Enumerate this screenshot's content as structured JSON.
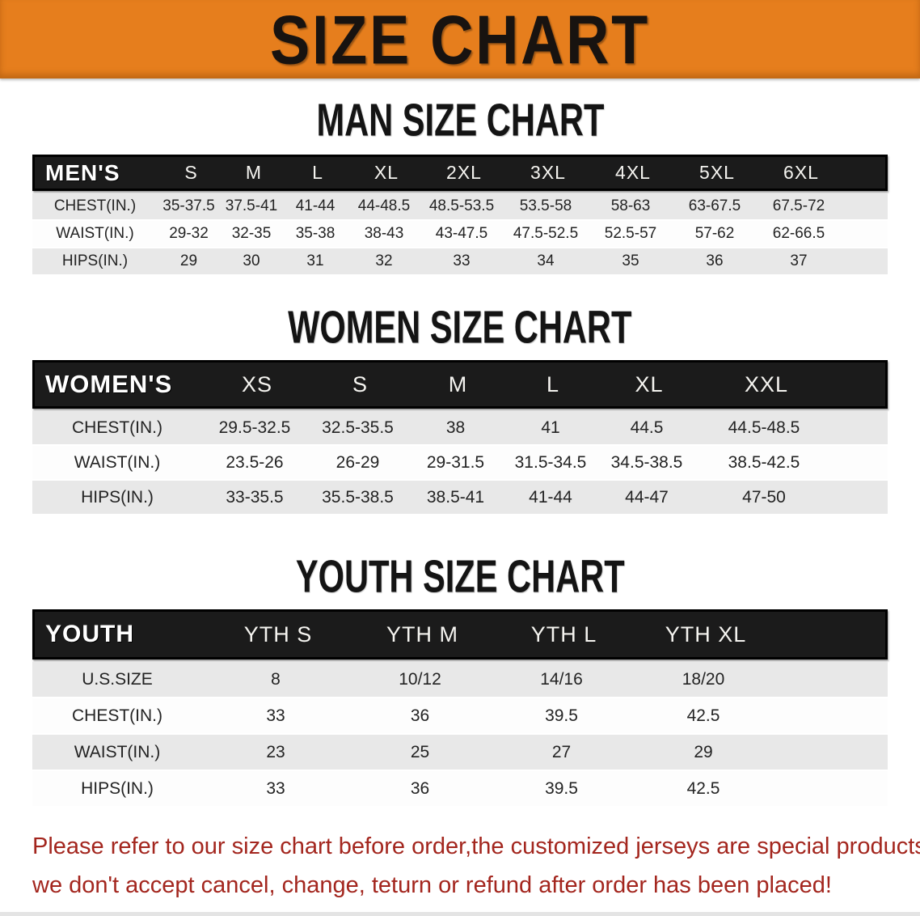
{
  "banner": {
    "title": "SIZE CHART"
  },
  "sections": {
    "men": {
      "heading": "MAN SIZE CHART",
      "header_label": "MEN'S",
      "columns": [
        "S",
        "M",
        "L",
        "XL",
        "2XL",
        "3XL",
        "4XL",
        "5XL",
        "6XL"
      ],
      "rows": [
        {
          "label": "CHEST(IN.)",
          "values": [
            "35-37.5",
            "37.5-41",
            "41-44",
            "44-48.5",
            "48.5-53.5",
            "53.5-58",
            "58-63",
            "63-67.5",
            "67.5-72"
          ]
        },
        {
          "label": "WAIST(IN.)",
          "values": [
            "29-32",
            "32-35",
            "35-38",
            "38-43",
            "43-47.5",
            "47.5-52.5",
            "52.5-57",
            "57-62",
            "62-66.5"
          ]
        },
        {
          "label": "HIPS(IN.)",
          "values": [
            "29",
            "30",
            "31",
            "32",
            "33",
            "34",
            "35",
            "36",
            "37"
          ]
        }
      ]
    },
    "women": {
      "heading": "WOMEN SIZE CHART",
      "header_label": "WOMEN'S",
      "columns": [
        "XS",
        "S",
        "M",
        "L",
        "XL",
        "XXL"
      ],
      "rows": [
        {
          "label": "CHEST(IN.)",
          "values": [
            "29.5-32.5",
            "32.5-35.5",
            "38",
            "41",
            "44.5",
            "44.5-48.5"
          ]
        },
        {
          "label": "WAIST(IN.)",
          "values": [
            "23.5-26",
            "26-29",
            "29-31.5",
            "31.5-34.5",
            "34.5-38.5",
            "38.5-42.5"
          ]
        },
        {
          "label": "HIPS(IN.)",
          "values": [
            "33-35.5",
            "35.5-38.5",
            "38.5-41",
            "41-44",
            "44-47",
            "47-50"
          ]
        }
      ]
    },
    "youth": {
      "heading": "YOUTH SIZE CHART",
      "header_label": "YOUTH",
      "columns": [
        "YTH S",
        "YTH M",
        "YTH L",
        "YTH XL"
      ],
      "rows": [
        {
          "label": "U.S.SIZE",
          "values": [
            "8",
            "10/12",
            "14/16",
            "18/20"
          ]
        },
        {
          "label": "CHEST(IN.)",
          "values": [
            "33",
            "36",
            "39.5",
            "42.5"
          ]
        },
        {
          "label": "WAIST(IN.)",
          "values": [
            "23",
            "25",
            "27",
            "29"
          ]
        },
        {
          "label": "HIPS(IN.)",
          "values": [
            "33",
            "36",
            "39.5",
            "42.5"
          ]
        }
      ]
    }
  },
  "footer": {
    "line1": "Please refer to our size chart before order,the customized jerseys are special products,",
    "line2": "we don't accept cancel, change, teturn or refund after order has been placed!"
  },
  "colors": {
    "banner_bg": "#e67e1d",
    "header_bg": "#1b1b1b",
    "row_alt": "#e8e8e8",
    "footer_text": "#a3261e"
  }
}
